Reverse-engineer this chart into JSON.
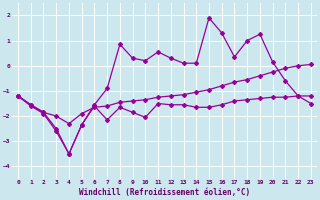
{
  "xlabel": "Windchill (Refroidissement éolien,°C)",
  "bg_color": "#cce8ee",
  "grid_color": "#ffffff",
  "line_color": "#990099",
  "xlim": [
    -0.5,
    23.5
  ],
  "ylim": [
    -4.5,
    2.5
  ],
  "yticks": [
    -4,
    -3,
    -2,
    -1,
    0,
    1,
    2
  ],
  "xticks": [
    0,
    1,
    2,
    3,
    4,
    5,
    6,
    7,
    8,
    9,
    10,
    11,
    12,
    13,
    14,
    15,
    16,
    17,
    18,
    19,
    20,
    21,
    22,
    23
  ],
  "line1_x": [
    0,
    1,
    2,
    3,
    4,
    5,
    6,
    7,
    8,
    9,
    10,
    11,
    12,
    13,
    14,
    15,
    16,
    17,
    18,
    19,
    20,
    21,
    22,
    23
  ],
  "line1_y": [
    -1.2,
    -1.55,
    -1.85,
    -2.0,
    -2.3,
    -1.9,
    -1.65,
    -1.6,
    -1.45,
    -1.4,
    -1.35,
    -1.25,
    -1.2,
    -1.15,
    -1.05,
    -0.95,
    -0.8,
    -0.65,
    -0.55,
    -0.4,
    -0.25,
    -0.1,
    0.0,
    0.05
  ],
  "line2_x": [
    0,
    1,
    2,
    3,
    4,
    5,
    6,
    7,
    8,
    9,
    10,
    11,
    12,
    13,
    14,
    15,
    16,
    17,
    18,
    19,
    20,
    21,
    22,
    23
  ],
  "line2_y": [
    -1.2,
    -1.6,
    -1.9,
    -2.6,
    -3.5,
    -2.35,
    -1.55,
    -0.9,
    0.85,
    0.3,
    0.2,
    0.55,
    0.3,
    0.1,
    0.1,
    1.9,
    1.3,
    0.35,
    1.0,
    1.25,
    0.15,
    -0.6,
    -1.2,
    -1.5
  ],
  "line3_x": [
    0,
    1,
    2,
    3,
    4,
    5,
    6,
    7,
    8,
    9,
    10,
    11,
    12,
    13,
    14,
    15,
    16,
    17,
    18,
    19,
    20,
    21,
    22,
    23
  ],
  "line3_y": [
    -1.2,
    -1.55,
    -1.85,
    -2.5,
    -3.5,
    -2.35,
    -1.6,
    -2.15,
    -1.65,
    -1.85,
    -2.05,
    -1.5,
    -1.55,
    -1.55,
    -1.65,
    -1.65,
    -1.55,
    -1.4,
    -1.35,
    -1.3,
    -1.25,
    -1.25,
    -1.2,
    -1.2
  ]
}
